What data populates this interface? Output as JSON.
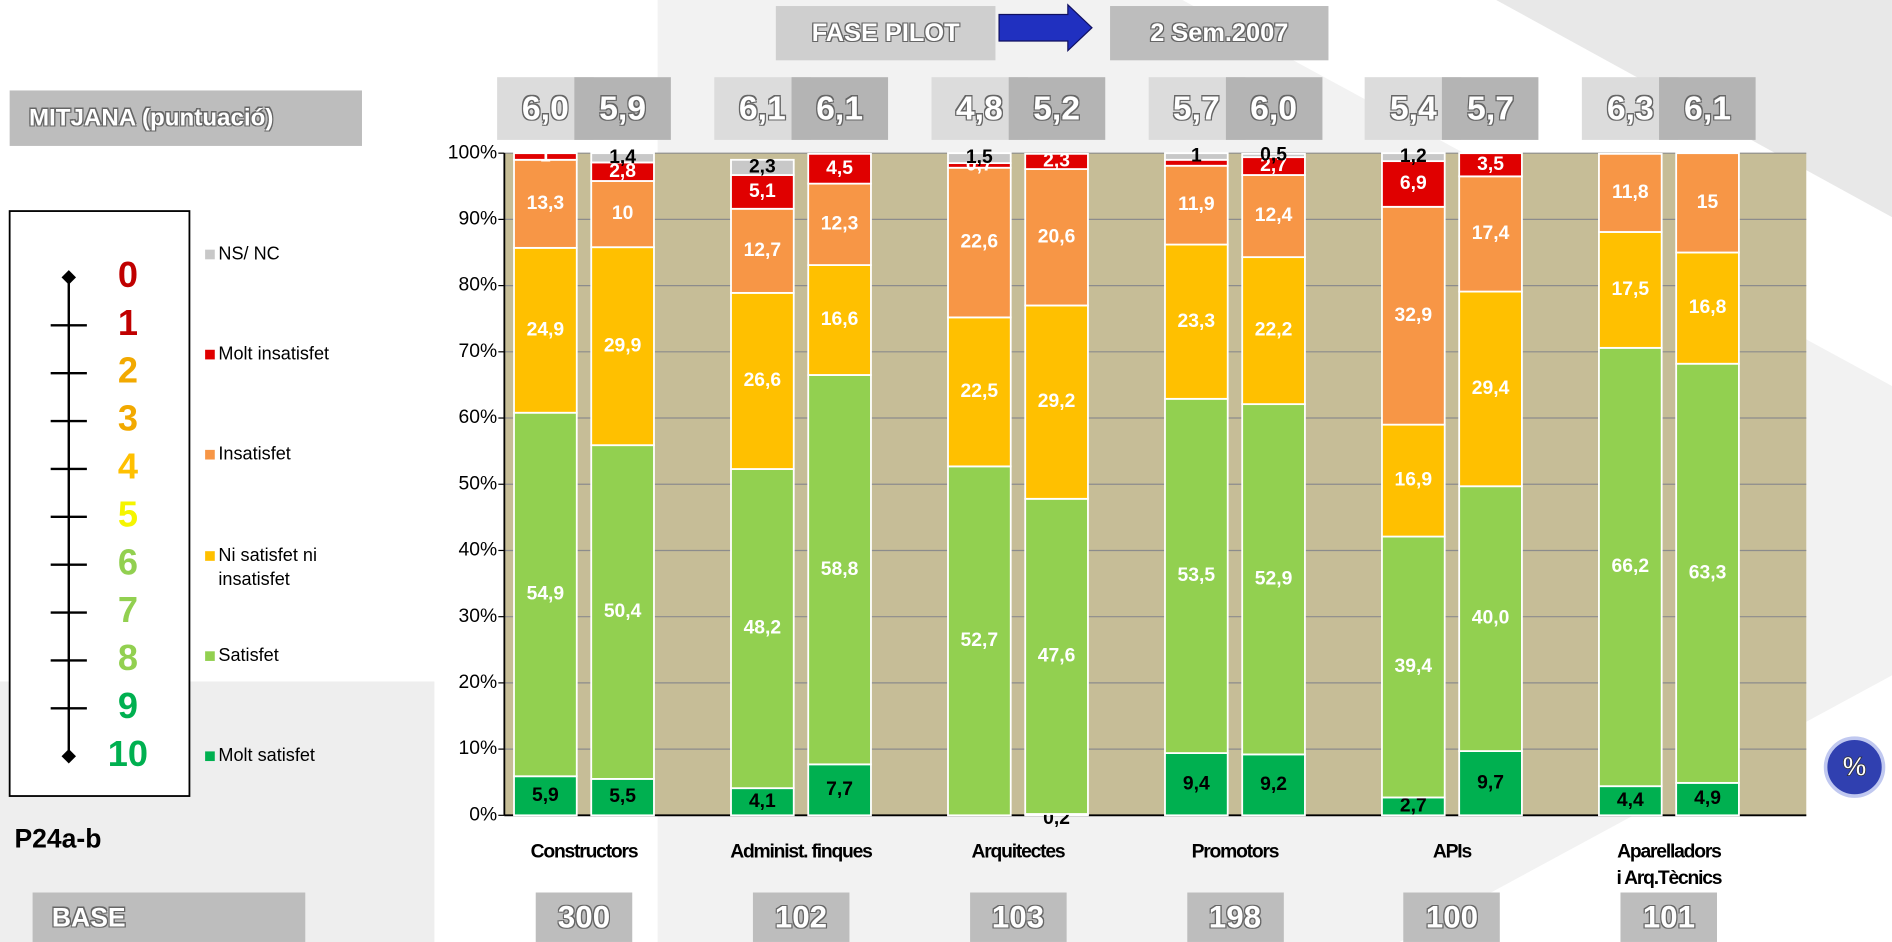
{
  "header": {
    "left": "FASE PILOT",
    "right": "2 Sem.2007",
    "mean_title": "MITJANA (puntuació)",
    "question": "P24a-b",
    "base_title": "BASE",
    "unit_badge": "%"
  },
  "scale": [
    {
      "label": "0",
      "color": "#c00000"
    },
    {
      "label": "1",
      "color": "#c00000"
    },
    {
      "label": "2",
      "color": "#f2a900"
    },
    {
      "label": "3",
      "color": "#f2a900"
    },
    {
      "label": "4",
      "color": "#ffc000"
    },
    {
      "label": "5",
      "color": "#f5f500"
    },
    {
      "label": "6",
      "color": "#92d050"
    },
    {
      "label": "7",
      "color": "#92d050"
    },
    {
      "label": "8",
      "color": "#92d050"
    },
    {
      "label": "9",
      "color": "#00b050"
    },
    {
      "label": "10",
      "color": "#00b050"
    }
  ],
  "chart_data": {
    "type": "stacked_bar",
    "groups": [
      "Constructors",
      "Administ. finques",
      "Arquitectes",
      "Promotors",
      "APIs",
      "Aparelladors\ni Arq.Tècnics"
    ],
    "means": [
      "6,0",
      "5,9",
      "6,1",
      "6,1",
      "4,8",
      "5,2",
      "5,7",
      "6,0",
      "5,4",
      "5,7",
      "6,3",
      "6,1"
    ],
    "base": [
      300,
      102,
      103,
      198,
      100,
      101
    ],
    "ylim": [
      0,
      100
    ],
    "yticks": [
      {
        "value": 0,
        "label": "0%"
      },
      {
        "value": 10,
        "label": "10%"
      },
      {
        "value": 20,
        "label": "20%"
      },
      {
        "value": 30,
        "label": "30%"
      },
      {
        "value": 40,
        "label": "40%"
      },
      {
        "value": 50,
        "label": "50%"
      },
      {
        "value": 60,
        "label": "60%"
      },
      {
        "value": 70,
        "label": "70%"
      },
      {
        "value": 80,
        "label": "80%"
      },
      {
        "value": 90,
        "label": "90%"
      },
      {
        "value": 100,
        "label": "100%"
      }
    ],
    "grid": true,
    "series": [
      {
        "name": "Molt satisfet",
        "color": "#00b050",
        "values": [
          5.9,
          5.5,
          4.1,
          7.7,
          null,
          0.2,
          9.4,
          9.2,
          2.7,
          9.7,
          4.4,
          4.9
        ],
        "value_labels": [
          "5,9",
          "5,5",
          "4,1",
          "7,7",
          null,
          "0,2",
          "9,4",
          "9,2",
          "2,7",
          "9,7",
          "4,4",
          "4,9"
        ]
      },
      {
        "name": "Satisfet",
        "color": "#92d050",
        "values": [
          54.9,
          50.4,
          48.2,
          58.8,
          52.7,
          47.6,
          53.5,
          52.9,
          39.4,
          40.0,
          66.2,
          63.3
        ],
        "value_labels": [
          "54,9",
          "50,4",
          "48,2",
          "58,8",
          "52,7",
          "47,6",
          "53,5",
          "52,9",
          "39,4",
          "40,0",
          "66,2",
          "63,3"
        ]
      },
      {
        "name": "Ni satisfet ni insatisfet",
        "color": "#ffc000",
        "values": [
          24.9,
          29.9,
          26.6,
          16.6,
          22.5,
          29.2,
          23.3,
          22.2,
          16.9,
          29.4,
          17.5,
          16.8
        ],
        "value_labels": [
          "24,9",
          "29,9",
          "26,6",
          "16,6",
          "22,5",
          "29,2",
          "23,3",
          "22,2",
          "16,9",
          "29,4",
          "17,5",
          "16,8"
        ]
      },
      {
        "name": "Insatisfet",
        "color": "#f79646",
        "values": [
          13.3,
          10,
          12.7,
          12.3,
          22.6,
          20.6,
          11.9,
          12.4,
          32.9,
          17.4,
          11.8,
          15
        ],
        "value_labels": [
          "13,3",
          "10",
          "12,7",
          "12,3",
          "22,6",
          "20,6",
          "11,9",
          "12,4",
          "32,9",
          "17,4",
          "11,8",
          "15"
        ]
      },
      {
        "name": "Molt insatisfet",
        "color": "#e00000",
        "values": [
          1,
          2.8,
          5.1,
          4.5,
          0.7,
          2.3,
          0.9,
          2.7,
          6.9,
          3.5,
          null,
          null
        ],
        "value_labels": [
          "1",
          "2,8",
          "5,1",
          "4,5",
          "0,7",
          "2,3",
          null,
          "2,7",
          "6,9",
          "3,5",
          null,
          null
        ]
      },
      {
        "name": "NS/ NC",
        "color": "#c8c8c8",
        "values": [
          null,
          1.4,
          2.3,
          null,
          1.5,
          null,
          1,
          0.5,
          1.2,
          null,
          null,
          null
        ],
        "value_labels": [
          null,
          "1,4",
          "2,3",
          null,
          "1,5",
          null,
          "1",
          "0,5",
          "1,2",
          null,
          null,
          null
        ]
      }
    ]
  }
}
